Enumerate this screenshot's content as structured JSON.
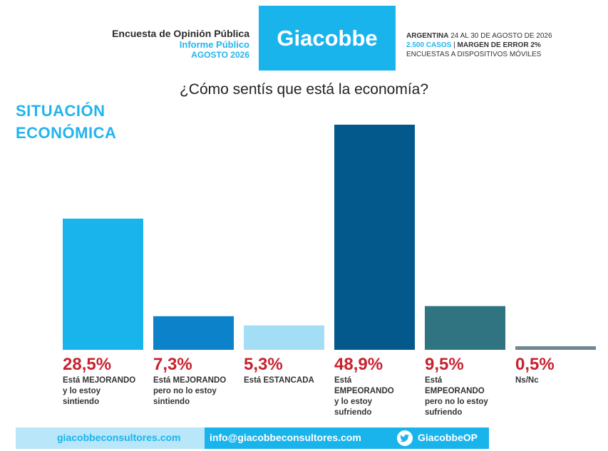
{
  "header": {
    "line1": "Encuesta de Opinión Pública",
    "line2": "Informe Público",
    "line3": "AGOSTO 2026",
    "logo": "Giacobbe",
    "right_country": "ARGENTINA",
    "right_dates": "24 AL 30 DE AGOSTO DE 2026",
    "right_cases": "2.500 CASOS",
    "right_sep": "|",
    "right_margin": "MARGEN DE ERROR 2%",
    "right_method": "ENCUESTAS A DISPOSITIVOS MÓVILES"
  },
  "question": "¿Cómo sentís que está la economía?",
  "section_title_1": "SITUACIÓN",
  "section_title_2": "ECONÓMICA",
  "colors": {
    "accent": "#1ab4ec",
    "pct_red": "#c8212e",
    "bars": [
      "#1ab4ec",
      "#0b82c9",
      "#a4def6",
      "#04598c",
      "#2f7480",
      "#6f8792"
    ]
  },
  "chart_data": {
    "type": "bar",
    "categories": [
      "Está MEJORANDO y lo estoy sintiendo",
      "Está MEJORANDO pero no lo estoy sintiendo",
      "Está ESTANCADA",
      "Está EMPEORANDO y lo estoy sufriendo",
      "Está EMPEORANDO pero no lo estoy sufriendo",
      "Ns/Nc"
    ],
    "values": [
      28.5,
      7.3,
      5.3,
      48.9,
      9.5,
      0.5
    ],
    "value_labels": [
      "28,5%",
      "7,3%",
      "5,3%",
      "48,9%",
      "9,5%",
      "0,5%"
    ],
    "label_lines": [
      [
        "Está MEJORANDO",
        "y lo estoy",
        "sintiendo"
      ],
      [
        "Está MEJORANDO",
        "pero no lo estoy",
        "sintiendo"
      ],
      [
        "Está ESTANCADA"
      ],
      [
        "Está",
        "EMPEORANDO",
        "y lo estoy",
        "sufriendo"
      ],
      [
        "Está",
        "EMPEORANDO",
        "pero no lo estoy",
        "sufriendo"
      ],
      [
        "Ns/Nc"
      ]
    ],
    "title": "¿Cómo sentís que está la economía?",
    "xlabel": "",
    "ylabel": "",
    "grid": false
  },
  "footer": {
    "web": "giacobbeconsultores.com",
    "email": "info@giacobbeconsultores.com",
    "twitter": "GiacobbeOP",
    "twitter_icon": "twitter-bird-icon"
  }
}
